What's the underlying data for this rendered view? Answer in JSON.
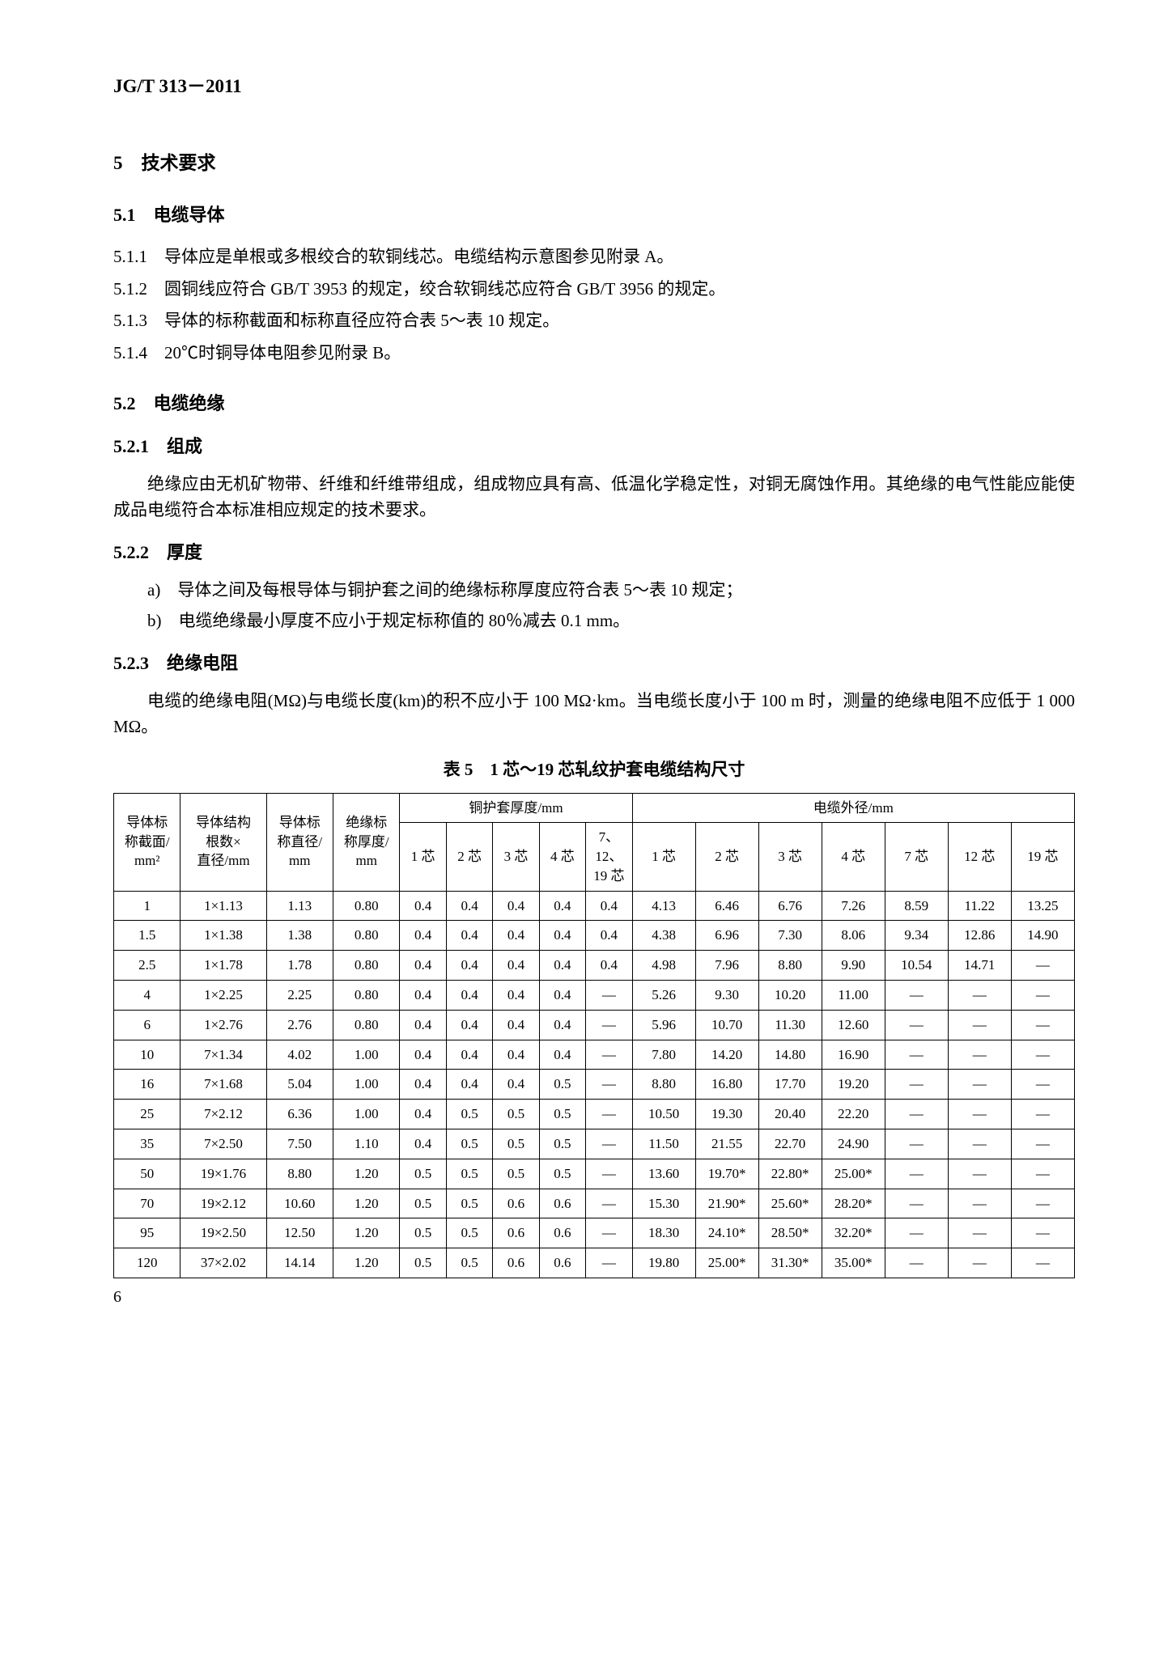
{
  "header": {
    "code": "JG/T 313－2011"
  },
  "s5": {
    "title": "5　技术要求"
  },
  "s51": {
    "title": "5.1　电缆导体",
    "p1": "5.1.1　导体应是单根或多根绞合的软铜线芯。电缆结构示意图参见附录 A。",
    "p2": "5.1.2　圆铜线应符合 GB/T 3953 的规定，绞合软铜线芯应符合 GB/T 3956 的规定。",
    "p3": "5.1.3　导体的标称截面和标称直径应符合表 5～表 10 规定。",
    "p4": "5.1.4　20℃时铜导体电阻参见附录 B。"
  },
  "s52": {
    "title": "5.2　电缆绝缘"
  },
  "s521": {
    "title": "5.2.1　组成",
    "p": "绝缘应由无机矿物带、纤维和纤维带组成，组成物应具有高、低温化学稳定性，对铜无腐蚀作用。其绝缘的电气性能应能使成品电缆符合本标准相应规定的技术要求。"
  },
  "s522": {
    "title": "5.2.2　厚度",
    "a": "a)　导体之间及每根导体与铜护套之间的绝缘标称厚度应符合表 5～表 10 规定；",
    "b": "b)　电缆绝缘最小厚度不应小于规定标称值的 80％减去 0.1 mm。"
  },
  "s523": {
    "title": "5.2.3　绝缘电阻",
    "p": "电缆的绝缘电阻(MΩ)与电缆长度(km)的积不应小于 100 MΩ·km。当电缆长度小于 100 m 时，测量的绝缘电阻不应低于 1 000 MΩ。"
  },
  "tbl": {
    "title": "表 5　1 芯～19 芯轧纹护套电缆结构尺寸",
    "h": {
      "c1a": "导体标",
      "c1b": "称截面/",
      "c1c": "mm²",
      "c2a": "导体结构",
      "c2b": "根数×",
      "c2c": "直径/mm",
      "c3a": "导体标",
      "c3b": "称直径/",
      "c3c": "mm",
      "c4a": "绝缘标",
      "c4b": "称厚度/",
      "c4c": "mm",
      "g1": "铜护套厚度/mm",
      "g2": "电缆外径/mm",
      "t1": "1 芯",
      "t2": "2 芯",
      "t3": "3 芯",
      "t4": "4 芯",
      "t5a": "7、12、",
      "t5b": "19 芯",
      "d1": "1 芯",
      "d2": "2 芯",
      "d3": "3 芯",
      "d4": "4 芯",
      "d7": "7 芯",
      "d12": "12 芯",
      "d19": "19 芯"
    },
    "rows": [
      [
        "1",
        "1×1.13",
        "1.13",
        "0.80",
        "0.4",
        "0.4",
        "0.4",
        "0.4",
        "0.4",
        "4.13",
        "6.46",
        "6.76",
        "7.26",
        "8.59",
        "11.22",
        "13.25"
      ],
      [
        "1.5",
        "1×1.38",
        "1.38",
        "0.80",
        "0.4",
        "0.4",
        "0.4",
        "0.4",
        "0.4",
        "4.38",
        "6.96",
        "7.30",
        "8.06",
        "9.34",
        "12.86",
        "14.90"
      ],
      [
        "2.5",
        "1×1.78",
        "1.78",
        "0.80",
        "0.4",
        "0.4",
        "0.4",
        "0.4",
        "0.4",
        "4.98",
        "7.96",
        "8.80",
        "9.90",
        "10.54",
        "14.71",
        "—"
      ],
      [
        "4",
        "1×2.25",
        "2.25",
        "0.80",
        "0.4",
        "0.4",
        "0.4",
        "0.4",
        "—",
        "5.26",
        "9.30",
        "10.20",
        "11.00",
        "—",
        "—",
        "—"
      ],
      [
        "6",
        "1×2.76",
        "2.76",
        "0.80",
        "0.4",
        "0.4",
        "0.4",
        "0.4",
        "—",
        "5.96",
        "10.70",
        "11.30",
        "12.60",
        "—",
        "—",
        "—"
      ],
      [
        "10",
        "7×1.34",
        "4.02",
        "1.00",
        "0.4",
        "0.4",
        "0.4",
        "0.4",
        "—",
        "7.80",
        "14.20",
        "14.80",
        "16.90",
        "—",
        "—",
        "—"
      ],
      [
        "16",
        "7×1.68",
        "5.04",
        "1.00",
        "0.4",
        "0.4",
        "0.4",
        "0.5",
        "—",
        "8.80",
        "16.80",
        "17.70",
        "19.20",
        "—",
        "—",
        "—"
      ],
      [
        "25",
        "7×2.12",
        "6.36",
        "1.00",
        "0.4",
        "0.5",
        "0.5",
        "0.5",
        "—",
        "10.50",
        "19.30",
        "20.40",
        "22.20",
        "—",
        "—",
        "—"
      ],
      [
        "35",
        "7×2.50",
        "7.50",
        "1.10",
        "0.4",
        "0.5",
        "0.5",
        "0.5",
        "—",
        "11.50",
        "21.55",
        "22.70",
        "24.90",
        "—",
        "—",
        "—"
      ],
      [
        "50",
        "19×1.76",
        "8.80",
        "1.20",
        "0.5",
        "0.5",
        "0.5",
        "0.5",
        "—",
        "13.60",
        "19.70*",
        "22.80*",
        "25.00*",
        "—",
        "—",
        "—"
      ],
      [
        "70",
        "19×2.12",
        "10.60",
        "1.20",
        "0.5",
        "0.5",
        "0.6",
        "0.6",
        "—",
        "15.30",
        "21.90*",
        "25.60*",
        "28.20*",
        "—",
        "—",
        "—"
      ],
      [
        "95",
        "19×2.50",
        "12.50",
        "1.20",
        "0.5",
        "0.5",
        "0.6",
        "0.6",
        "—",
        "18.30",
        "24.10*",
        "28.50*",
        "32.20*",
        "—",
        "—",
        "—"
      ],
      [
        "120",
        "37×2.02",
        "14.14",
        "1.20",
        "0.5",
        "0.5",
        "0.6",
        "0.6",
        "—",
        "19.80",
        "25.00*",
        "31.30*",
        "35.00*",
        "—",
        "—",
        "—"
      ]
    ]
  },
  "page": "6"
}
